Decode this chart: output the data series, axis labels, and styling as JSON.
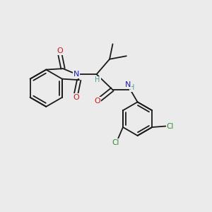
{
  "background_color": "#ebebeb",
  "bond_color": "#1a1a1a",
  "atom_colors": {
    "N": "#1a1acc",
    "O": "#cc1a1a",
    "Cl": "#2e8b2e",
    "H": "#4a9a9a",
    "C": "#1a1a1a"
  },
  "figsize": [
    3.0,
    3.0
  ],
  "dpi": 100,
  "lw": 1.3
}
